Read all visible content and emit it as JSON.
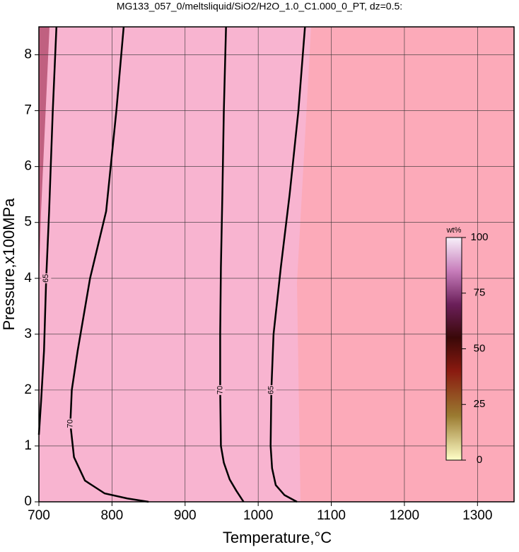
{
  "chart_data": {
    "type": "contour",
    "title": "MG133_057_0/meltsliquid/SiO2/H2O_1.0_C1.000_0_PT, dz=0.5:",
    "x_label": "Temperature,°C",
    "y_label": "Pressure,x100MPa",
    "xlim": [
      700,
      1350
    ],
    "xticks": [
      700,
      800,
      900,
      1000,
      1100,
      1200,
      1300
    ],
    "ylim": [
      0,
      8.5
    ],
    "yticks": [
      0,
      1,
      2,
      3,
      4,
      5,
      6,
      7,
      8
    ],
    "grid": true,
    "contours": [
      {
        "level": 65,
        "x": [
          724,
          719,
          714,
          710,
          707,
          703,
          700
        ],
        "y": [
          8.5,
          7,
          5.2,
          4,
          2.7,
          1.8,
          1.2
        ]
      },
      {
        "level": 70,
        "x": [
          816,
          806,
          792,
          770,
          753,
          745,
          743,
          748,
          763,
          790,
          821,
          850
        ],
        "y": [
          8.5,
          7,
          5.2,
          4,
          2.7,
          2,
          1.4,
          0.8,
          0.38,
          0.15,
          0.06,
          0
        ]
      },
      {
        "level": 70,
        "x": [
          956,
          953,
          951,
          949,
          948,
          948,
          949,
          953,
          961,
          970,
          980
        ],
        "y": [
          8.5,
          7,
          5.5,
          4.2,
          3,
          2,
          1,
          0.7,
          0.4,
          0.2,
          0
        ]
      },
      {
        "level": 65,
        "x": [
          1064,
          1055,
          1043,
          1031,
          1021,
          1018,
          1017,
          1019,
          1024,
          1036,
          1053
        ],
        "y": [
          8.5,
          7,
          5.5,
          4.2,
          3,
          2,
          1,
          0.6,
          0.3,
          0.12,
          0
        ]
      }
    ],
    "colorbar": {
      "label": "wt%",
      "lim": [
        0,
        100
      ],
      "ticks": [
        0,
        25,
        50,
        75,
        100
      ]
    }
  }
}
